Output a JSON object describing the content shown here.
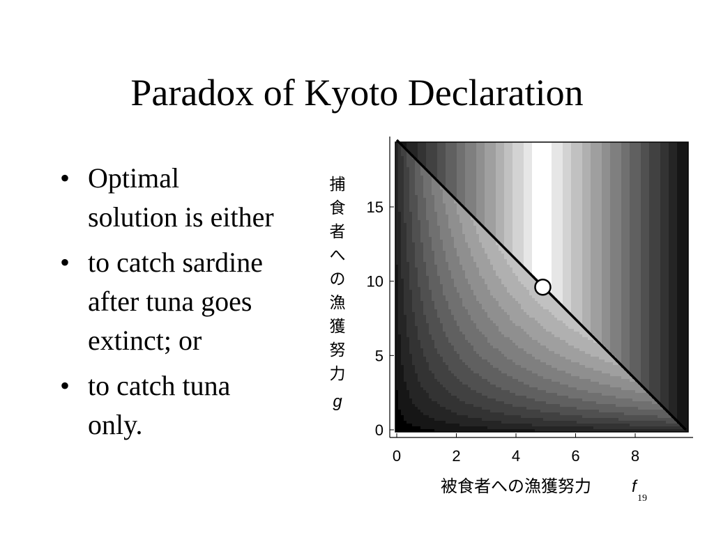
{
  "slide": {
    "title": "Paradox of Kyoto Declaration",
    "page_number": "19",
    "bullets": [
      [
        "Optimal",
        "solution is either"
      ],
      [
        "to catch sardine",
        "after tuna goes",
        "extinct; or"
      ],
      [
        "to catch tuna",
        "only."
      ]
    ]
  },
  "chart_data": {
    "type": "heatmap",
    "subtype": "contour",
    "xlabel": "被食者への漁獲努力",
    "xlabel_var": "f",
    "ylabel_chars": [
      "捕",
      "食",
      "者",
      "へ",
      "の",
      "漁",
      "獲",
      "努",
      "力"
    ],
    "ylabel_var": "g",
    "xlim": [
      0,
      9.7
    ],
    "ylim": [
      0,
      19.5
    ],
    "xticks": [
      0,
      2,
      4,
      6,
      8
    ],
    "yticks": [
      0,
      5,
      10,
      15
    ],
    "constraint_line": {
      "x": [
        0,
        9.7
      ],
      "y": [
        19.5,
        0
      ]
    },
    "optimum_point": {
      "x": 4.9,
      "y": 9.6
    },
    "palette": [
      "#000000",
      "#161616",
      "#252525",
      "#333333",
      "#414141",
      "#505050",
      "#606060",
      "#707070",
      "#7f7f7f",
      "#8f8f8f",
      "#9f9f9f",
      "#b0b0b0",
      "#c1c1c1",
      "#d3d3d3",
      "#e6e6e6",
      "#ffffff"
    ],
    "legend": "none"
  }
}
